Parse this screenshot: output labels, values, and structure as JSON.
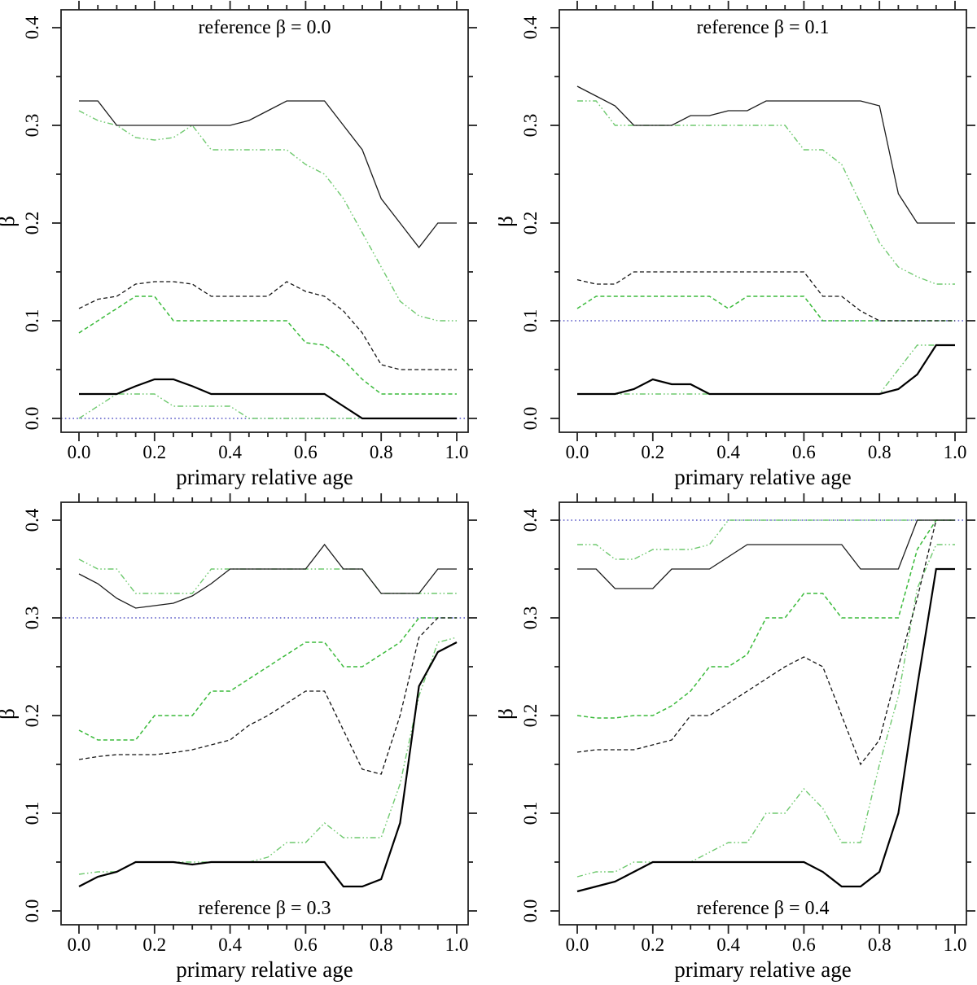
{
  "figure": {
    "background": "#ffffff",
    "colors": {
      "black_thin": "#1c1c1c",
      "black_thick": "#000000",
      "black_dashed": "#141414",
      "green_dashed": "#3aba3a",
      "green_dashdot": "#6fc96f",
      "blue_reference": "#3434bb"
    },
    "axes": {
      "xlabel": "primary relative age",
      "ylabel": "β",
      "xlim": [
        -0.047,
        1.03
      ],
      "ylim": [
        -0.014,
        0.417
      ],
      "x_major_ticks": [
        0.0,
        0.2,
        0.4,
        0.6,
        0.8,
        1.0
      ],
      "x_tick_labels": [
        "0.0",
        "0.2",
        "0.4",
        "0.6",
        "0.8",
        "1.0"
      ],
      "x_minor_step": 0.05,
      "y_major_ticks": [
        0.0,
        0.1,
        0.2,
        0.3,
        0.4
      ],
      "y_tick_labels": [
        "0.0",
        "0.1",
        "0.2",
        "0.3",
        "0.4"
      ],
      "y_minor_step": 0.05,
      "grid": false,
      "legend": "none"
    }
  },
  "chart_data": [
    {
      "type": "line",
      "title": "reference β = 0.0",
      "title_position": "top",
      "reference_beta": 0.0,
      "xlabel": "primary relative age",
      "ylabel": "β",
      "x": [
        0,
        0.05,
        0.1,
        0.15,
        0.2,
        0.25,
        0.3,
        0.35,
        0.4,
        0.45,
        0.5,
        0.55,
        0.6,
        0.65,
        0.7,
        0.75,
        0.8,
        0.85,
        0.9,
        0.95,
        1
      ],
      "series": [
        {
          "name": "upper-black-solid",
          "color": "black_thin",
          "style": "solid",
          "width": 1.3,
          "values": [
            0.325,
            0.325,
            0.3,
            0.3,
            0.3,
            0.3,
            0.3,
            0.3,
            0.3,
            0.305,
            0.315,
            0.325,
            0.325,
            0.325,
            0.3,
            0.275,
            0.225,
            0.2,
            0.175,
            0.2,
            0.2
          ]
        },
        {
          "name": "upper-green-dashdot",
          "color": "green_dashdot",
          "style": "dashdot",
          "width": 1.4,
          "values": [
            0.315,
            0.305,
            0.3,
            0.2875,
            0.285,
            0.2875,
            0.3,
            0.275,
            0.275,
            0.275,
            0.275,
            0.275,
            0.26,
            0.25,
            0.225,
            0.19,
            0.155,
            0.12,
            0.105,
            0.1,
            0.1
          ]
        },
        {
          "name": "mid-black-dashed",
          "color": "black_dashed",
          "style": "dashed",
          "width": 1.3,
          "values": [
            0.1125,
            0.122,
            0.125,
            0.1375,
            0.14,
            0.14,
            0.1375,
            0.125,
            0.125,
            0.125,
            0.125,
            0.14,
            0.13,
            0.125,
            0.11,
            0.0875,
            0.055,
            0.05,
            0.05,
            0.05,
            0.05
          ]
        },
        {
          "name": "mid-green-dashed",
          "color": "green_dashed",
          "style": "dashed",
          "width": 1.5,
          "values": [
            0.0875,
            0.1,
            0.1125,
            0.125,
            0.125,
            0.1,
            0.1,
            0.1,
            0.1,
            0.1,
            0.1,
            0.1,
            0.0775,
            0.075,
            0.06,
            0.04,
            0.025,
            0.025,
            0.025,
            0.025,
            0.025
          ]
        },
        {
          "name": "lower-black-solid",
          "color": "black_thick",
          "style": "solid",
          "width": 2.2,
          "values": [
            0.025,
            0.025,
            0.025,
            0.033,
            0.04,
            0.04,
            0.033,
            0.025,
            0.025,
            0.025,
            0.025,
            0.025,
            0.025,
            0.025,
            0.0125,
            0.0,
            0.0,
            0.0,
            0.0,
            0.0,
            0.0
          ]
        },
        {
          "name": "lower-green-dashdot",
          "color": "green_dashdot",
          "style": "dashdot",
          "width": 1.4,
          "values": [
            0.0,
            0.0125,
            0.025,
            0.025,
            0.025,
            0.0125,
            0.0125,
            0.0125,
            0.0125,
            0.0,
            0.0,
            0.0,
            0.0,
            0.0,
            0.0,
            0.0,
            0.0,
            0.0,
            0.0,
            0.0,
            0.0
          ]
        }
      ]
    },
    {
      "type": "line",
      "title": "reference β = 0.1",
      "title_position": "top",
      "reference_beta": 0.1,
      "xlabel": "primary relative age",
      "ylabel": "β",
      "x": [
        0,
        0.05,
        0.1,
        0.15,
        0.2,
        0.25,
        0.3,
        0.35,
        0.4,
        0.45,
        0.5,
        0.55,
        0.6,
        0.65,
        0.7,
        0.75,
        0.8,
        0.85,
        0.9,
        0.95,
        1
      ],
      "series": [
        {
          "name": "upper-black-solid",
          "color": "black_thin",
          "style": "solid",
          "width": 1.3,
          "values": [
            0.34,
            0.33,
            0.32,
            0.3,
            0.3,
            0.3,
            0.31,
            0.31,
            0.315,
            0.315,
            0.325,
            0.325,
            0.325,
            0.325,
            0.325,
            0.325,
            0.32,
            0.23,
            0.2,
            0.2,
            0.2
          ]
        },
        {
          "name": "upper-green-dashdot",
          "color": "green_dashdot",
          "style": "dashdot",
          "width": 1.4,
          "values": [
            0.325,
            0.325,
            0.3,
            0.3,
            0.3,
            0.3,
            0.3,
            0.3,
            0.3,
            0.3,
            0.3,
            0.3,
            0.275,
            0.275,
            0.26,
            0.22,
            0.18,
            0.155,
            0.145,
            0.1375,
            0.1375
          ]
        },
        {
          "name": "mid-black-dashed",
          "color": "black_dashed",
          "style": "dashed",
          "width": 1.3,
          "values": [
            0.142,
            0.1375,
            0.1375,
            0.15,
            0.15,
            0.15,
            0.15,
            0.15,
            0.15,
            0.15,
            0.15,
            0.15,
            0.15,
            0.125,
            0.125,
            0.11,
            0.1,
            0.1,
            0.1,
            0.1,
            0.1
          ]
        },
        {
          "name": "mid-green-dashed",
          "color": "green_dashed",
          "style": "dashed",
          "width": 1.5,
          "values": [
            0.1125,
            0.125,
            0.125,
            0.125,
            0.125,
            0.125,
            0.125,
            0.125,
            0.1125,
            0.125,
            0.125,
            0.125,
            0.125,
            0.1,
            0.1,
            0.1,
            0.1,
            0.1,
            0.1,
            0.1,
            0.1
          ]
        },
        {
          "name": "lower-black-solid",
          "color": "black_thick",
          "style": "solid",
          "width": 2.2,
          "values": [
            0.025,
            0.025,
            0.025,
            0.03,
            0.04,
            0.035,
            0.035,
            0.025,
            0.025,
            0.025,
            0.025,
            0.025,
            0.025,
            0.025,
            0.025,
            0.025,
            0.025,
            0.03,
            0.045,
            0.075,
            0.075
          ]
        },
        {
          "name": "lower-green-dashdot",
          "color": "green_dashdot",
          "style": "dashdot",
          "width": 1.4,
          "values": [
            0.025,
            0.025,
            0.025,
            0.025,
            0.025,
            0.025,
            0.025,
            0.025,
            0.025,
            0.025,
            0.025,
            0.025,
            0.025,
            0.025,
            0.025,
            0.025,
            0.025,
            0.05,
            0.075,
            0.075,
            0.075
          ]
        }
      ]
    },
    {
      "type": "line",
      "title": "reference β = 0.3",
      "title_position": "bottom",
      "reference_beta": 0.3,
      "xlabel": "primary relative age",
      "ylabel": "β",
      "x": [
        0,
        0.05,
        0.1,
        0.15,
        0.2,
        0.25,
        0.3,
        0.35,
        0.4,
        0.45,
        0.5,
        0.55,
        0.6,
        0.65,
        0.7,
        0.75,
        0.8,
        0.85,
        0.9,
        0.95,
        1
      ],
      "series": [
        {
          "name": "upper-black-solid",
          "color": "black_thin",
          "style": "solid",
          "width": 1.3,
          "values": [
            0.345,
            0.335,
            0.32,
            0.31,
            0.3125,
            0.315,
            0.3225,
            0.335,
            0.35,
            0.35,
            0.35,
            0.35,
            0.35,
            0.375,
            0.35,
            0.35,
            0.325,
            0.325,
            0.325,
            0.35,
            0.35
          ]
        },
        {
          "name": "upper-green-dashdot",
          "color": "green_dashdot",
          "style": "dashdot",
          "width": 1.4,
          "values": [
            0.36,
            0.35,
            0.35,
            0.325,
            0.325,
            0.325,
            0.325,
            0.35,
            0.35,
            0.35,
            0.35,
            0.35,
            0.35,
            0.35,
            0.35,
            0.35,
            0.325,
            0.325,
            0.325,
            0.325,
            0.325
          ]
        },
        {
          "name": "mid-black-dashed",
          "color": "black_dashed",
          "style": "dashed",
          "width": 1.3,
          "values": [
            0.155,
            0.158,
            0.16,
            0.16,
            0.16,
            0.162,
            0.165,
            0.17,
            0.175,
            0.19,
            0.2,
            0.2125,
            0.225,
            0.225,
            0.185,
            0.145,
            0.14,
            0.2,
            0.28,
            0.3,
            0.3
          ]
        },
        {
          "name": "mid-green-dashed",
          "color": "green_dashed",
          "style": "dashed",
          "width": 1.5,
          "values": [
            0.185,
            0.175,
            0.175,
            0.175,
            0.2,
            0.2,
            0.2,
            0.225,
            0.225,
            0.2375,
            0.25,
            0.2625,
            0.275,
            0.275,
            0.25,
            0.25,
            0.2625,
            0.275,
            0.3,
            0.3,
            0.3
          ]
        },
        {
          "name": "lower-black-solid",
          "color": "black_thick",
          "style": "solid",
          "width": 2.2,
          "values": [
            0.025,
            0.035,
            0.04,
            0.05,
            0.05,
            0.05,
            0.0475,
            0.05,
            0.05,
            0.05,
            0.05,
            0.05,
            0.05,
            0.05,
            0.025,
            0.025,
            0.0325,
            0.09,
            0.23,
            0.265,
            0.275
          ]
        },
        {
          "name": "lower-green-dashdot",
          "color": "green_dashdot",
          "style": "dashdot",
          "width": 1.4,
          "values": [
            0.0375,
            0.04,
            0.04,
            0.05,
            0.05,
            0.05,
            0.05,
            0.05,
            0.05,
            0.05,
            0.055,
            0.07,
            0.07,
            0.09,
            0.075,
            0.075,
            0.075,
            0.13,
            0.22,
            0.275,
            0.28
          ]
        }
      ]
    },
    {
      "type": "line",
      "title": "reference β = 0.4",
      "title_position": "bottom",
      "reference_beta": 0.4,
      "xlabel": "primary relative age",
      "ylabel": "β",
      "x": [
        0,
        0.05,
        0.1,
        0.15,
        0.2,
        0.25,
        0.3,
        0.35,
        0.4,
        0.45,
        0.5,
        0.55,
        0.6,
        0.65,
        0.7,
        0.75,
        0.8,
        0.85,
        0.9,
        0.95,
        1
      ],
      "series": [
        {
          "name": "upper-black-solid",
          "color": "black_thin",
          "style": "solid",
          "width": 1.3,
          "values": [
            0.35,
            0.35,
            0.33,
            0.33,
            0.33,
            0.35,
            0.35,
            0.35,
            0.3625,
            0.375,
            0.375,
            0.375,
            0.375,
            0.375,
            0.375,
            0.35,
            0.35,
            0.35,
            0.4,
            0.4,
            0.4
          ]
        },
        {
          "name": "upper-green-dashdot",
          "color": "green_dashdot",
          "style": "dashdot",
          "width": 1.4,
          "values": [
            0.375,
            0.375,
            0.36,
            0.36,
            0.37,
            0.37,
            0.37,
            0.375,
            0.4,
            0.4,
            0.4,
            0.4,
            0.4,
            0.4,
            0.4,
            0.4,
            0.4,
            0.4,
            0.4,
            0.4,
            0.4
          ]
        },
        {
          "name": "mid-black-dashed",
          "color": "black_dashed",
          "style": "dashed",
          "width": 1.3,
          "values": [
            0.1625,
            0.165,
            0.165,
            0.165,
            0.17,
            0.175,
            0.2,
            0.2,
            0.2125,
            0.225,
            0.2375,
            0.25,
            0.26,
            0.25,
            0.2,
            0.15,
            0.175,
            0.25,
            0.32,
            0.4,
            0.4
          ]
        },
        {
          "name": "mid-green-dashed",
          "color": "green_dashed",
          "style": "dashed",
          "width": 1.5,
          "values": [
            0.2,
            0.1975,
            0.1975,
            0.2,
            0.2,
            0.21,
            0.225,
            0.25,
            0.25,
            0.2625,
            0.3,
            0.3,
            0.325,
            0.325,
            0.3,
            0.3,
            0.3,
            0.3,
            0.37,
            0.4,
            0.4
          ]
        },
        {
          "name": "lower-black-solid",
          "color": "black_thick",
          "style": "solid",
          "width": 2.2,
          "values": [
            0.02,
            0.025,
            0.03,
            0.04,
            0.05,
            0.05,
            0.05,
            0.05,
            0.05,
            0.05,
            0.05,
            0.05,
            0.05,
            0.04,
            0.025,
            0.025,
            0.04,
            0.1,
            0.23,
            0.35,
            0.35
          ]
        },
        {
          "name": "lower-green-dashdot",
          "color": "green_dashdot",
          "style": "dashdot",
          "width": 1.4,
          "values": [
            0.035,
            0.04,
            0.04,
            0.05,
            0.05,
            0.05,
            0.05,
            0.06,
            0.07,
            0.07,
            0.1,
            0.1,
            0.125,
            0.105,
            0.07,
            0.07,
            0.15,
            0.22,
            0.33,
            0.375,
            0.375
          ]
        }
      ]
    }
  ]
}
